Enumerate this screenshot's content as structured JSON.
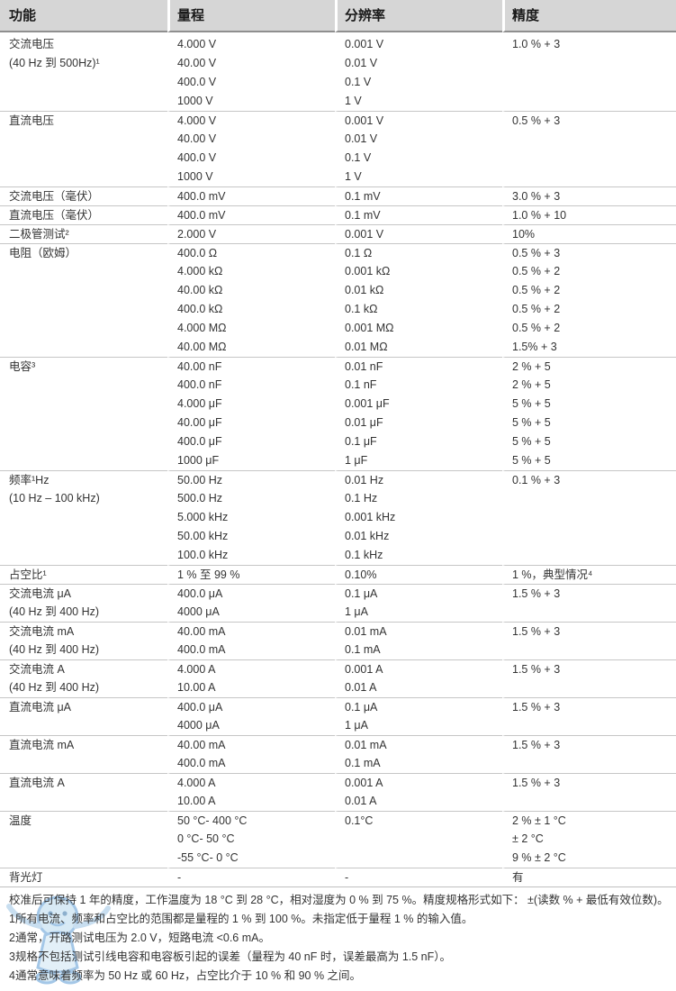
{
  "table": {
    "columns": [
      "功能",
      "量程",
      "分辨率",
      "精度"
    ],
    "sections": [
      {
        "function_lines": [
          "交流电压",
          "(40 Hz 到 500Hz)¹"
        ],
        "rows": [
          {
            "range": "4.000 V",
            "resolution": "0.001 V",
            "accuracy": "1.0 % + 3"
          },
          {
            "range": "40.00 V",
            "resolution": "0.01 V",
            "accuracy": ""
          },
          {
            "range": "400.0 V",
            "resolution": "0.1 V",
            "accuracy": ""
          },
          {
            "range": "1000 V",
            "resolution": "1 V",
            "accuracy": ""
          }
        ]
      },
      {
        "function_lines": [
          "直流电压"
        ],
        "rows": [
          {
            "range": "4.000 V",
            "resolution": "0.001 V",
            "accuracy": "0.5 % + 3"
          },
          {
            "range": "40.00 V",
            "resolution": "0.01 V",
            "accuracy": ""
          },
          {
            "range": "400.0 V",
            "resolution": "0.1 V",
            "accuracy": ""
          },
          {
            "range": "1000 V",
            "resolution": "1 V",
            "accuracy": ""
          }
        ]
      },
      {
        "function_lines": [
          "交流电压（毫伏）"
        ],
        "rows": [
          {
            "range": "400.0 mV",
            "resolution": "0.1 mV",
            "accuracy": "3.0 % + 3"
          }
        ]
      },
      {
        "function_lines": [
          "直流电压（毫伏）"
        ],
        "rows": [
          {
            "range": "400.0 mV",
            "resolution": "0.1 mV",
            "accuracy": "1.0 % + 10"
          }
        ]
      },
      {
        "function_lines": [
          "二极管测试²"
        ],
        "rows": [
          {
            "range": "2.000 V",
            "resolution": "0.001 V",
            "accuracy": "10%"
          }
        ]
      },
      {
        "function_lines": [
          "电阻（欧姆）"
        ],
        "rows": [
          {
            "range": "400.0 Ω",
            "resolution": "0.1 Ω",
            "accuracy": "0.5 % + 3"
          },
          {
            "range": "4.000 kΩ",
            "resolution": "0.001 kΩ",
            "accuracy": "0.5 % + 2"
          },
          {
            "range": "40.00 kΩ",
            "resolution": "0.01 kΩ",
            "accuracy": "0.5 % + 2"
          },
          {
            "range": "400.0 kΩ",
            "resolution": "0.1 kΩ",
            "accuracy": "0.5 % + 2"
          },
          {
            "range": "4.000 MΩ",
            "resolution": "0.001 MΩ",
            "accuracy": "0.5 % + 2"
          },
          {
            "range": "40.00 MΩ",
            "resolution": "0.01 MΩ",
            "accuracy": "1.5% + 3"
          }
        ]
      },
      {
        "function_lines": [
          "电容³"
        ],
        "rows": [
          {
            "range": "40.00 nF",
            "resolution": "0.01 nF",
            "accuracy": "2 % + 5"
          },
          {
            "range": "400.0 nF",
            "resolution": "0.1 nF",
            "accuracy": "2 % + 5"
          },
          {
            "range": "4.000 μF",
            "resolution": "0.001 μF",
            "accuracy": "5 % + 5"
          },
          {
            "range": "40.00 μF",
            "resolution": "0.01 μF",
            "accuracy": "5 % + 5"
          },
          {
            "range": "400.0 μF",
            "resolution": "0.1 μF",
            "accuracy": "5 % + 5"
          },
          {
            "range": "1000 μF",
            "resolution": "1 μF",
            "accuracy": "5 % + 5"
          }
        ]
      },
      {
        "function_lines": [
          "频率¹Hz",
          "(10 Hz – 100 kHz)"
        ],
        "rows": [
          {
            "range": "50.00 Hz",
            "resolution": "0.01 Hz",
            "accuracy": "0.1 % + 3"
          },
          {
            "range": "500.0 Hz",
            "resolution": "0.1 Hz",
            "accuracy": ""
          },
          {
            "range": "5.000 kHz",
            "resolution": "0.001 kHz",
            "accuracy": ""
          },
          {
            "range": "50.00 kHz",
            "resolution": "0.01 kHz",
            "accuracy": ""
          },
          {
            "range": "100.0 kHz",
            "resolution": "0.1 kHz",
            "accuracy": ""
          }
        ]
      },
      {
        "function_lines": [
          "占空比¹"
        ],
        "rows": [
          {
            "range": "1 % 至 99 %",
            "resolution": "0.10%",
            "accuracy": "1 %，典型情况⁴"
          }
        ]
      },
      {
        "function_lines": [
          "交流电流 μA",
          "(40 Hz 到 400 Hz)"
        ],
        "rows": [
          {
            "range": "400.0 μA",
            "resolution": "0.1 μA",
            "accuracy": "1.5 % + 3"
          },
          {
            "range": "4000 μA",
            "resolution": "1 μA",
            "accuracy": ""
          }
        ]
      },
      {
        "function_lines": [
          "交流电流 mA",
          "(40 Hz 到 400 Hz)"
        ],
        "rows": [
          {
            "range": "40.00 mA",
            "resolution": "0.01 mA",
            "accuracy": "1.5 % + 3"
          },
          {
            "range": "400.0 mA",
            "resolution": "0.1 mA",
            "accuracy": ""
          }
        ]
      },
      {
        "function_lines": [
          "交流电流 A",
          "(40 Hz 到 400 Hz)"
        ],
        "rows": [
          {
            "range": "4.000 A",
            "resolution": "0.001 A",
            "accuracy": "1.5 % + 3"
          },
          {
            "range": "10.00 A",
            "resolution": "0.01 A",
            "accuracy": ""
          }
        ]
      },
      {
        "function_lines": [
          "直流电流 μA"
        ],
        "rows": [
          {
            "range": "400.0 μA",
            "resolution": "0.1 μA",
            "accuracy": "1.5 % + 3"
          },
          {
            "range": "4000 μA",
            "resolution": "1 μA",
            "accuracy": ""
          }
        ]
      },
      {
        "function_lines": [
          "直流电流 mA"
        ],
        "rows": [
          {
            "range": "40.00 mA",
            "resolution": "0.01 mA",
            "accuracy": "1.5 % + 3"
          },
          {
            "range": "400.0 mA",
            "resolution": "0.1 mA",
            "accuracy": ""
          }
        ]
      },
      {
        "function_lines": [
          "直流电流 A"
        ],
        "rows": [
          {
            "range": "4.000 A",
            "resolution": "0.001 A",
            "accuracy": "1.5 % + 3"
          },
          {
            "range": "10.00 A",
            "resolution": "0.01 A",
            "accuracy": ""
          }
        ]
      },
      {
        "function_lines": [
          "温度"
        ],
        "rows": [
          {
            "range": "50 °C- 400 °C",
            "resolution": "0.1°C",
            "accuracy": "2 % ± 1 °C"
          },
          {
            "range": "0 °C- 50 °C",
            "resolution": "",
            "accuracy": "± 2 °C"
          },
          {
            "range": "-55 °C- 0 °C",
            "resolution": "",
            "accuracy": "9 % ± 2 °C"
          }
        ]
      },
      {
        "function_lines": [
          "背光灯"
        ],
        "rows": [
          {
            "range": "-",
            "resolution": "-",
            "accuracy": "有"
          }
        ]
      }
    ]
  },
  "notes": {
    "calibration": "校准后可保持 1 年的精度，工作温度为 18 °C 到 28 °C，相对湿度为 0 % 到 75 %。精度规格形式如下： ±(读数 % + 最低有效位数)。",
    "footnotes": [
      "1所有电流、频率和占空比的范围都是量程的 1 % 到 100 %。未指定低于量程 1 % 的输入值。",
      "2通常，开路测试电压为 2.0 V，短路电流 <0.6 mA。",
      "3规格不包括测试引线电容和电容板引起的误差（量程为 40 nF 时，误差最高为 1.5 nF）。",
      "4通常意味着频率为 50 Hz 或 60 Hz，占空比介于 10 % 和 90 % 之间。"
    ]
  },
  "watermark": {
    "label": "mascot-watermark",
    "fill_color": "#b9d9ee",
    "outline_color": "#5b9bd5"
  },
  "colors": {
    "header_bg": "#d6d6d6",
    "header_border": "#8f8f8f",
    "row_divider": "#c6c6c6",
    "text": "#333333"
  }
}
